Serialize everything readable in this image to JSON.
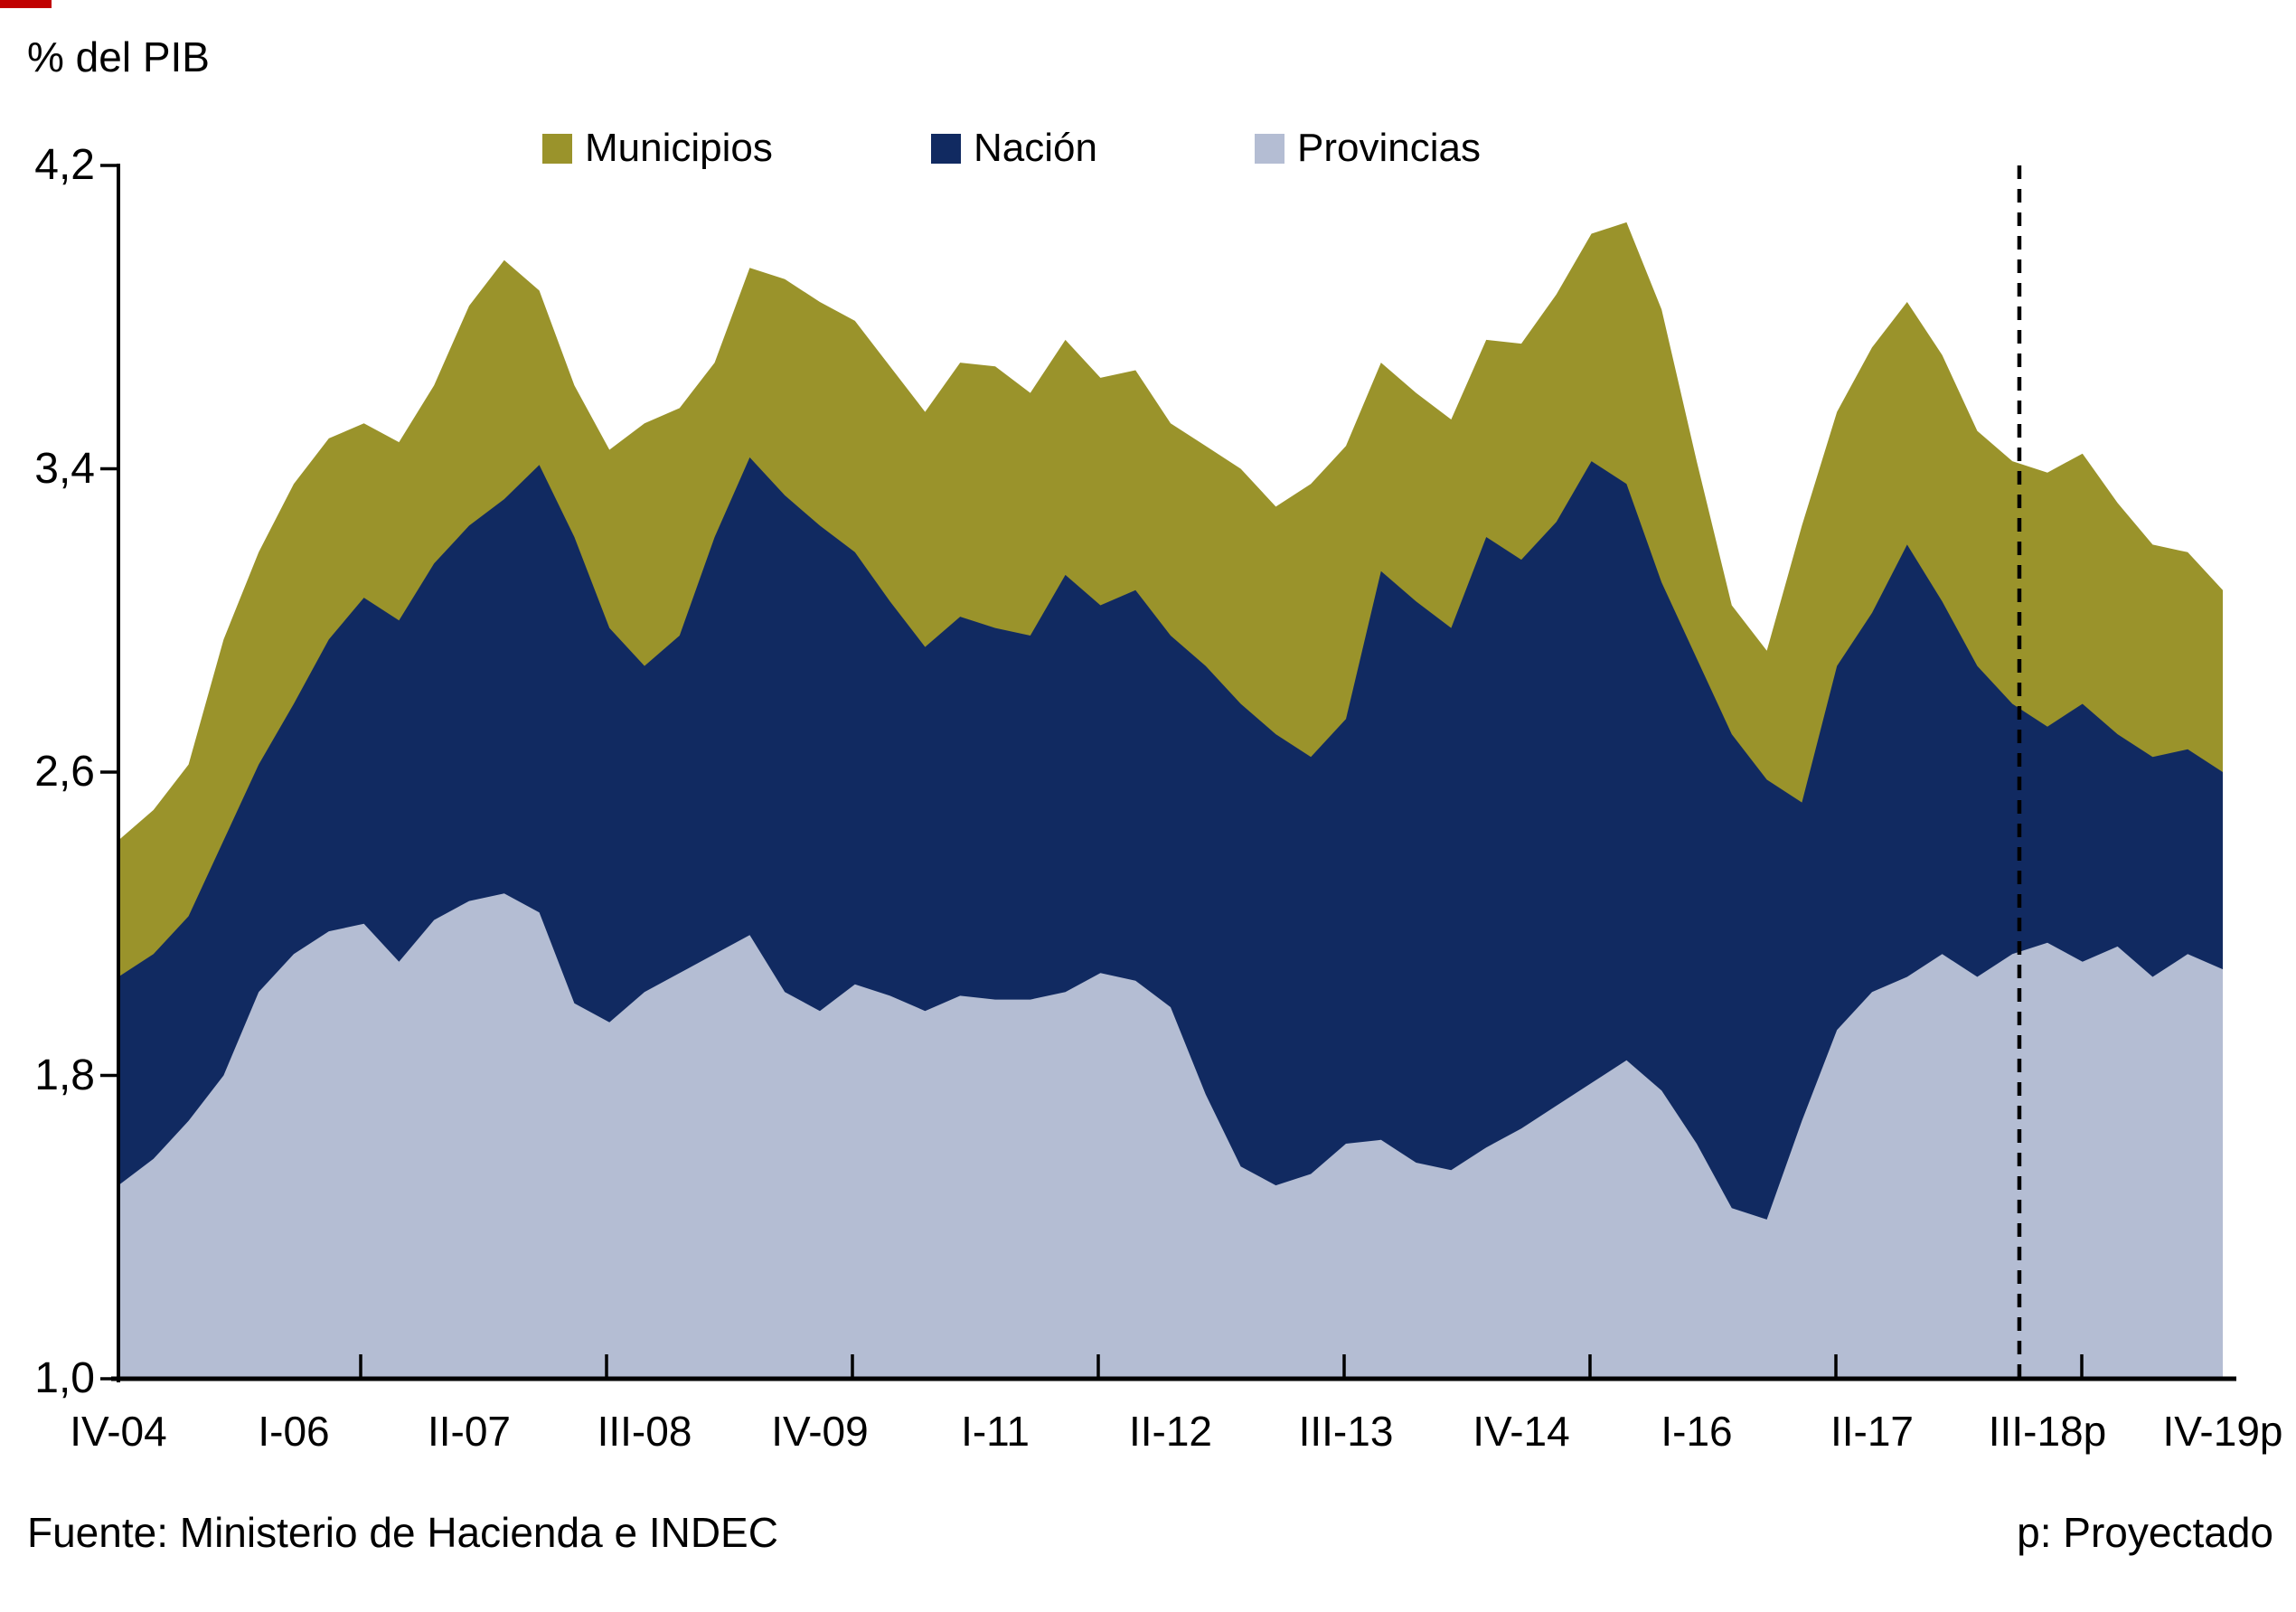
{
  "page": {
    "y_axis_title": "% del PIB",
    "footer_source": "Fuente: Ministerio de Hacienda e INDEC",
    "footer_note": "p: Proyectado"
  },
  "chart_data": {
    "type": "area",
    "stacked": true,
    "title": "",
    "ylabel": "% del PIB",
    "xlabel": "",
    "grid": false,
    "legend_position": "top",
    "ylim": [
      1.0,
      4.2
    ],
    "y_tick_labels": [
      "4,2",
      "3,4",
      "2,6",
      "1,8",
      "1,0"
    ],
    "y_tick_values": [
      4.2,
      3.4,
      2.6,
      1.8,
      1.0
    ],
    "x_count": 61,
    "x_tick_labels": [
      "IV-04",
      "I-06",
      "II-07",
      "III-08",
      "IV-09",
      "I-11",
      "II-12",
      "III-13",
      "IV-14",
      "I-16",
      "II-17",
      "III-18p",
      "IV-19p"
    ],
    "x_tick_label_indices": [
      0,
      5,
      10,
      15,
      20,
      25,
      30,
      35,
      40,
      45,
      50,
      55,
      60
    ],
    "projection_divider_index": 54.2,
    "stack_order": [
      "Provincias",
      "Nación",
      "Municipios"
    ],
    "series": [
      {
        "name": "Municipios",
        "color": "#9A932B",
        "values": [
          0.36,
          0.38,
          0.4,
          0.53,
          0.56,
          0.58,
          0.53,
          0.46,
          0.47,
          0.47,
          0.58,
          0.63,
          0.46,
          0.4,
          0.47,
          0.64,
          0.6,
          0.46,
          0.5,
          0.57,
          0.59,
          0.61,
          0.62,
          0.62,
          0.67,
          0.69,
          0.64,
          0.62,
          0.6,
          0.58,
          0.56,
          0.58,
          0.62,
          0.6,
          0.72,
          0.72,
          0.55,
          0.55,
          0.55,
          0.52,
          0.57,
          0.6,
          0.6,
          0.69,
          0.72,
          0.52,
          0.34,
          0.34,
          0.73,
          0.67,
          0.7,
          0.64,
          0.65,
          0.62,
          0.64,
          0.67,
          0.66,
          0.61,
          0.56,
          0.52,
          0.48
        ]
      },
      {
        "name": "Nación",
        "color": "#112A61",
        "values": [
          0.55,
          0.54,
          0.54,
          0.62,
          0.6,
          0.66,
          0.77,
          0.86,
          0.9,
          0.94,
          0.99,
          1.04,
          1.18,
          1.23,
          1.04,
          0.86,
          0.89,
          1.1,
          1.26,
          1.31,
          1.28,
          1.14,
          1.04,
          0.96,
          1.0,
          0.98,
          0.96,
          1.1,
          0.97,
          1.03,
          0.98,
          1.13,
          1.22,
          1.19,
          1.1,
          1.12,
          1.5,
          1.48,
          1.43,
          1.61,
          1.5,
          1.54,
          1.64,
          1.52,
          1.34,
          1.28,
          1.25,
          1.16,
          0.84,
          0.96,
          1.0,
          1.14,
          0.93,
          0.82,
          0.66,
          0.57,
          0.68,
          0.56,
          0.58,
          0.54,
          0.52
        ]
      },
      {
        "name": "Provincias",
        "color": "#B4BDD3",
        "values": [
          1.51,
          1.58,
          1.68,
          1.8,
          2.02,
          2.12,
          2.18,
          2.2,
          2.1,
          2.21,
          2.26,
          2.28,
          2.23,
          1.99,
          1.94,
          2.02,
          2.07,
          2.12,
          2.17,
          2.02,
          1.97,
          2.04,
          2.01,
          1.97,
          2.01,
          2.0,
          2.0,
          2.02,
          2.07,
          2.05,
          1.98,
          1.75,
          1.56,
          1.51,
          1.54,
          1.62,
          1.63,
          1.57,
          1.55,
          1.61,
          1.66,
          1.72,
          1.78,
          1.84,
          1.76,
          1.62,
          1.45,
          1.42,
          1.68,
          1.92,
          2.02,
          2.06,
          2.12,
          2.06,
          2.12,
          2.15,
          2.1,
          2.14,
          2.06,
          2.12,
          2.08
        ]
      }
    ]
  }
}
